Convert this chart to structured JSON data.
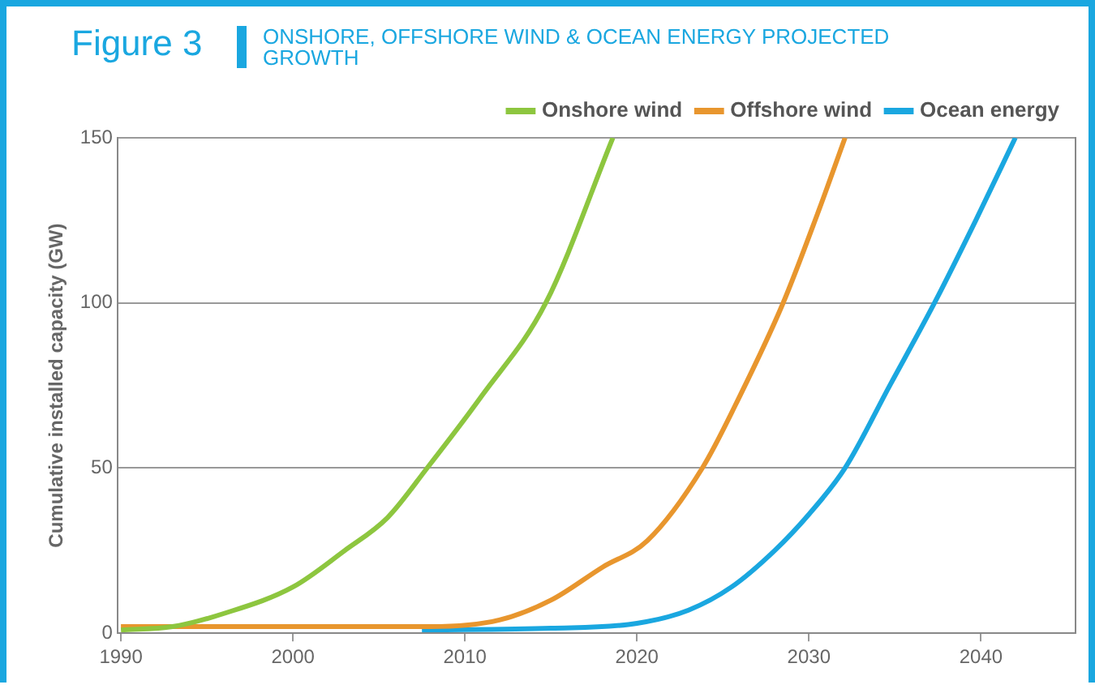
{
  "chart_data": {
    "type": "line",
    "title": "Figure 3",
    "subtitle": "ONSHORE, OFFSHORE WIND & OCEAN ENERGY PROJECTED GROWTH",
    "ylabel": "Cumulative installed capacity (GW)",
    "xlim": [
      1989.8,
      2045.5
    ],
    "xticks": [
      1990,
      2000,
      2010,
      2020,
      2030,
      2040
    ],
    "ylim": [
      0,
      150
    ],
    "yticks": [
      0,
      50,
      100,
      150
    ],
    "grid": "y",
    "legend": "top right",
    "marker": "none",
    "line_style": "solid",
    "series": [
      {
        "name": "Onshore wind",
        "color": "#8dc63f",
        "x": [
          1990,
          1993,
          1996,
          2000,
          2003,
          2005.5,
          2007.8,
          2011,
          2014.7,
          2018.6
        ],
        "values": [
          1,
          2,
          6,
          14,
          25,
          35,
          50,
          72,
          100,
          150
        ]
      },
      {
        "name": "Offshore wind",
        "color": "#e8962e",
        "x": [
          1990,
          2000,
          2008,
          2012,
          2015,
          2018,
          2020.6,
          2023.8,
          2026,
          2028.5,
          2030.5,
          2032.1
        ],
        "values": [
          2,
          2,
          2,
          4,
          10,
          20,
          28,
          50,
          72,
          100,
          127,
          150
        ]
      },
      {
        "name": "Ocean energy",
        "color": "#1aa7e0",
        "x": [
          2007.5,
          2015,
          2020,
          2023,
          2025.5,
          2028,
          2030,
          2032.1,
          2034.7,
          2037.3,
          2039.7,
          2042
        ],
        "values": [
          1,
          1.5,
          3,
          7,
          14,
          25,
          36,
          50,
          75,
          100,
          125,
          150
        ]
      }
    ]
  }
}
